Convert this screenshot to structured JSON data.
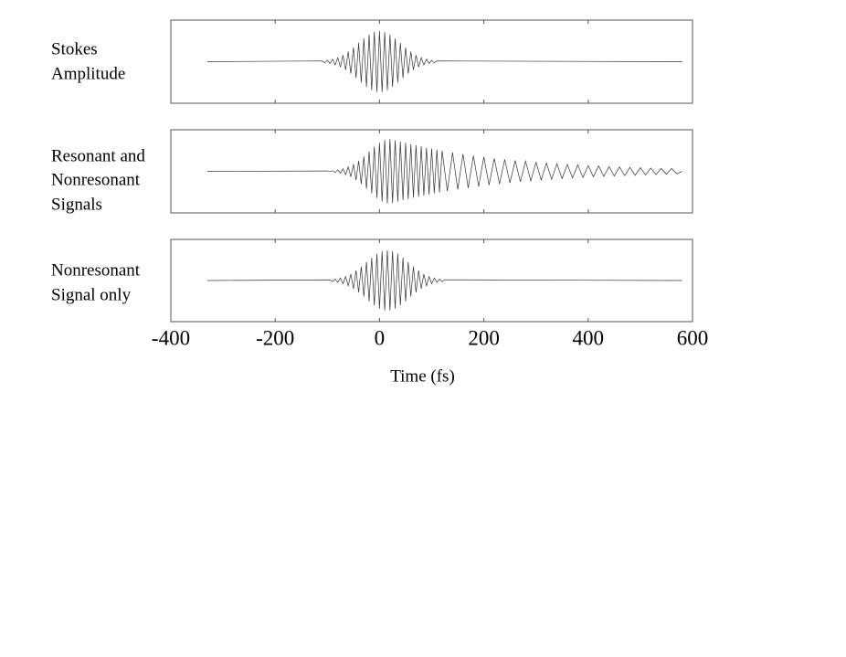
{
  "chart_data": [
    {
      "type": "line",
      "label": [
        "Stokes",
        "Amplitude"
      ],
      "color": "#333333",
      "xlim": [
        -400,
        600
      ],
      "ylim": [
        -1.15,
        1.15
      ],
      "x": [
        -330,
        -110,
        -105,
        -100,
        -95,
        -90,
        -85,
        -80,
        -75,
        -70,
        -65,
        -60,
        -55,
        -50,
        -45,
        -40,
        -35,
        -30,
        -25,
        -20,
        -15,
        -10,
        -5,
        0,
        5,
        10,
        15,
        20,
        25,
        30,
        35,
        40,
        45,
        50,
        55,
        60,
        65,
        70,
        75,
        80,
        85,
        90,
        95,
        100,
        105,
        110,
        580
      ],
      "values": [
        0,
        0.02,
        -0.03,
        0.04,
        -0.05,
        0.07,
        -0.09,
        0.11,
        -0.15,
        0.18,
        -0.23,
        0.28,
        -0.33,
        0.39,
        -0.45,
        0.52,
        -0.58,
        0.64,
        -0.7,
        0.75,
        -0.79,
        0.82,
        -0.84,
        0.85,
        -0.84,
        0.82,
        -0.79,
        0.75,
        -0.7,
        0.64,
        -0.58,
        0.52,
        -0.45,
        0.39,
        -0.33,
        0.28,
        -0.23,
        0.18,
        -0.15,
        0.11,
        -0.09,
        0.07,
        -0.05,
        0.04,
        -0.03,
        0.02,
        0
      ]
    },
    {
      "type": "line",
      "label": [
        "Resonant and",
        "Nonresonant",
        "Signals"
      ],
      "color": "#333333",
      "xlim": [
        -400,
        600
      ],
      "ylim": [
        -1.15,
        1.15
      ],
      "x": [
        -330,
        -100,
        -95,
        -90,
        -85,
        -80,
        -75,
        -70,
        -65,
        -60,
        -55,
        -50,
        -45,
        -40,
        -35,
        -30,
        -25,
        -20,
        -15,
        -10,
        -5,
        0,
        5,
        10,
        15,
        20,
        25,
        30,
        35,
        40,
        45,
        50,
        55,
        60,
        65,
        70,
        75,
        80,
        85,
        90,
        95,
        100,
        105,
        110,
        115,
        120,
        130,
        140,
        150,
        160,
        170,
        180,
        190,
        200,
        210,
        220,
        230,
        240,
        250,
        260,
        270,
        280,
        290,
        300,
        310,
        320,
        330,
        340,
        350,
        360,
        370,
        380,
        390,
        400,
        410,
        420,
        430,
        440,
        450,
        460,
        470,
        480,
        490,
        500,
        510,
        520,
        530,
        540,
        550,
        560,
        570,
        580
      ],
      "values": [
        0,
        0.01,
        -0.01,
        0.02,
        -0.03,
        0.04,
        -0.05,
        0.07,
        -0.09,
        0.12,
        -0.15,
        0.19,
        -0.24,
        0.29,
        -0.35,
        0.41,
        -0.48,
        0.55,
        -0.61,
        0.68,
        -0.74,
        0.79,
        -0.84,
        0.87,
        -0.89,
        0.9,
        -0.88,
        0.86,
        -0.84,
        0.82,
        -0.8,
        0.79,
        -0.77,
        0.75,
        -0.73,
        0.72,
        -0.7,
        0.69,
        -0.67,
        0.65,
        -0.64,
        0.63,
        -0.61,
        0.6,
        -0.58,
        0.57,
        -0.55,
        0.52,
        -0.5,
        0.48,
        -0.46,
        0.43,
        -0.42,
        0.4,
        -0.38,
        0.36,
        -0.35,
        0.33,
        -0.32,
        0.3,
        -0.29,
        0.28,
        -0.26,
        0.25,
        -0.24,
        0.23,
        -0.22,
        0.21,
        -0.2,
        0.19,
        -0.18,
        0.18,
        -0.17,
        0.16,
        -0.15,
        0.15,
        -0.14,
        0.13,
        -0.13,
        0.12,
        -0.12,
        0.11,
        -0.11,
        0.1,
        -0.1,
        0.09,
        -0.09,
        0.08,
        -0.08,
        0.08,
        -0.07,
        0
      ]
    },
    {
      "type": "line",
      "label": [
        "Nonresonant",
        "Signal only"
      ],
      "color": "#333333",
      "xlim": [
        -400,
        600
      ],
      "ylim": [
        -1.15,
        1.15
      ],
      "xticks": [
        -400,
        -200,
        0,
        200,
        400,
        600
      ],
      "xlabel": "Time (fs)",
      "x": [
        -330,
        -95,
        -90,
        -85,
        -80,
        -75,
        -70,
        -65,
        -60,
        -55,
        -50,
        -45,
        -40,
        -35,
        -30,
        -25,
        -20,
        -15,
        -10,
        -5,
        0,
        5,
        10,
        15,
        20,
        25,
        30,
        35,
        40,
        45,
        50,
        55,
        60,
        65,
        70,
        75,
        80,
        85,
        90,
        95,
        100,
        105,
        110,
        115,
        120,
        125,
        580
      ],
      "values": [
        0,
        0.02,
        -0.03,
        0.04,
        -0.05,
        0.07,
        -0.09,
        0.11,
        -0.15,
        0.18,
        -0.23,
        0.28,
        -0.33,
        0.39,
        -0.45,
        0.52,
        -0.58,
        0.64,
        -0.7,
        0.75,
        -0.79,
        0.82,
        -0.84,
        0.85,
        -0.84,
        0.82,
        -0.79,
        0.75,
        -0.7,
        0.64,
        -0.58,
        0.52,
        -0.45,
        0.39,
        -0.33,
        0.28,
        -0.23,
        0.18,
        -0.15,
        0.11,
        -0.09,
        0.07,
        -0.05,
        0.04,
        -0.03,
        0.02,
        0
      ]
    }
  ]
}
